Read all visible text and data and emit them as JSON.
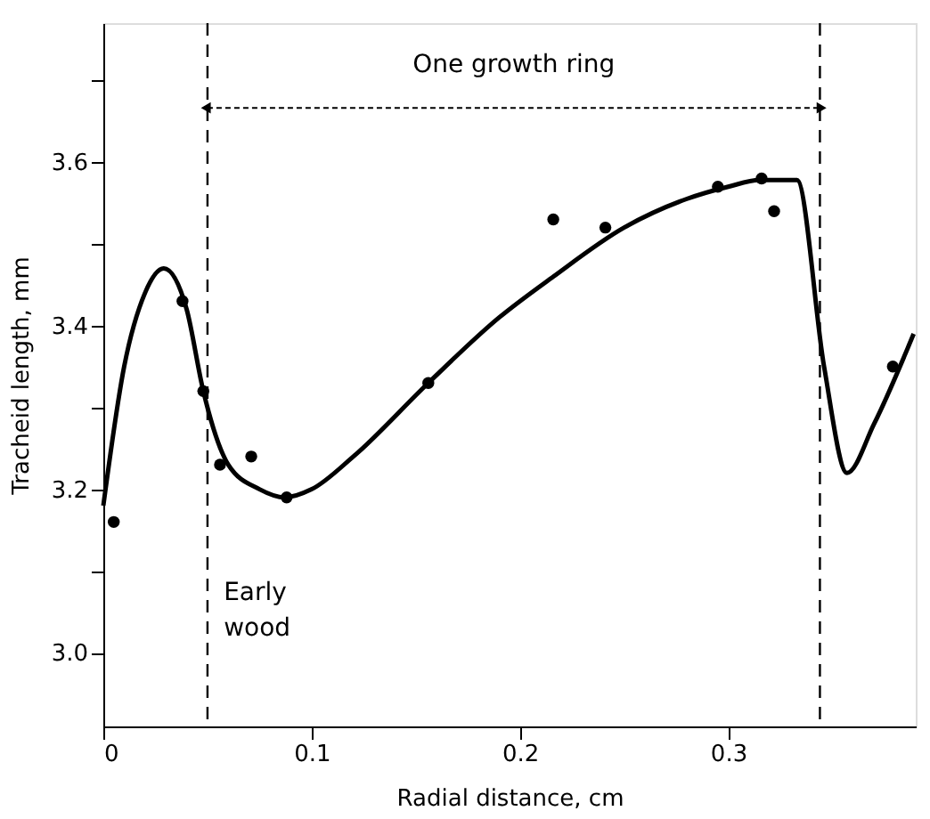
{
  "chart_data": {
    "type": "scatter",
    "xlabel": "Radial distance, cm",
    "ylabel": "Tracheid length, mm",
    "xlim": [
      0,
      0.39
    ],
    "ylim": [
      2.91,
      3.77
    ],
    "xticks": [
      0,
      0.1,
      0.2,
      0.3
    ],
    "yticks": [
      {
        "value": 3.0,
        "label": "3.0"
      },
      {
        "value": 3.1,
        "label": null
      },
      3.2,
      {
        "value": 3.3,
        "label": null
      },
      3.4,
      {
        "value": 3.5,
        "label": null
      },
      3.6,
      {
        "value": 3.7,
        "label": null
      }
    ],
    "grid": false,
    "series": [
      {
        "color": "#000000",
        "marker": "circle",
        "x": [
          0.005,
          0.038,
          0.048,
          0.056,
          0.071,
          0.088,
          0.156,
          0.216,
          0.241,
          0.295,
          0.316,
          0.322,
          0.379
        ],
        "values": [
          3.16,
          3.43,
          3.32,
          3.23,
          3.24,
          3.19,
          3.33,
          3.53,
          3.52,
          3.57,
          3.58,
          3.54,
          3.35
        ]
      },
      {
        "type": "line",
        "color": "#000000",
        "marker": "none",
        "line_style": "solid",
        "x": [
          0,
          0.01,
          0.02,
          0.029,
          0.04,
          0.048,
          0.06,
          0.075,
          0.087,
          0.1,
          0.12,
          0.156,
          0.19,
          0.216,
          0.25,
          0.28,
          0.3,
          0.315,
          0.333,
          0.346,
          0.357,
          0.37,
          0.389
        ],
        "values": [
          3.18,
          3.35,
          3.44,
          3.47,
          3.42,
          3.32,
          3.23,
          3.2,
          3.19,
          3.2,
          3.24,
          3.33,
          3.41,
          3.46,
          3.52,
          3.555,
          3.57,
          3.578,
          3.578,
          3.35,
          3.22,
          3.28,
          3.39
        ]
      }
    ],
    "ref_lines": [
      {
        "axis": "x",
        "value": 0.05,
        "line_style": "dashed",
        "color": "#000000"
      },
      {
        "axis": "x",
        "value": 0.344,
        "line_style": "dashed",
        "color": "#000000"
      }
    ],
    "annotations": [
      "One growth ring",
      "Early\nwood"
    ]
  }
}
